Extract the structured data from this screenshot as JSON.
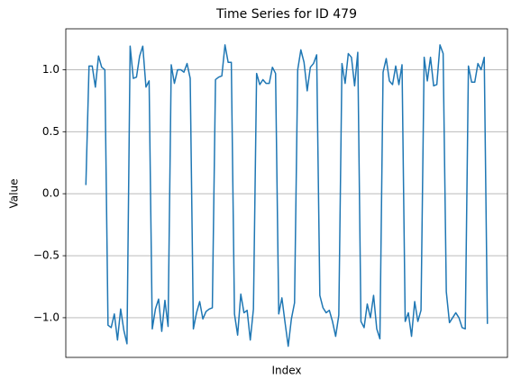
{
  "chart_data": {
    "type": "line",
    "title": "Time Series for ID 479",
    "xlabel": "Index",
    "ylabel": "Value",
    "color": "#1f77b4",
    "grid": true,
    "xlim": [
      -6.35,
      133.35
    ],
    "ylim": [
      -1.32,
      1.33
    ],
    "yticks": [
      {
        "value": -1.0,
        "label": "−1.0"
      },
      {
        "value": -0.5,
        "label": "−0.5"
      },
      {
        "value": 0.0,
        "label": "0.0"
      },
      {
        "value": 0.5,
        "label": "0.5"
      },
      {
        "value": 1.0,
        "label": "1.0"
      }
    ],
    "values": [
      0.07,
      1.03,
      1.03,
      0.86,
      1.11,
      1.02,
      1.0,
      -1.06,
      -1.08,
      -0.97,
      -1.18,
      -0.93,
      -1.1,
      -1.21,
      1.19,
      0.93,
      0.94,
      1.11,
      1.19,
      0.86,
      0.91,
      -1.09,
      -0.93,
      -0.85,
      -1.11,
      -0.86,
      -1.07,
      1.04,
      0.89,
      1.0,
      1.0,
      0.98,
      1.05,
      0.93,
      -1.09,
      -0.96,
      -0.87,
      -1.01,
      -0.95,
      -0.93,
      -0.92,
      0.92,
      0.94,
      0.95,
      1.2,
      1.06,
      1.06,
      -0.97,
      -1.14,
      -0.81,
      -0.96,
      -0.94,
      -1.18,
      -0.93,
      0.97,
      0.88,
      0.92,
      0.89,
      0.89,
      1.02,
      0.97,
      -0.97,
      -0.84,
      -1.04,
      -1.23,
      -1.01,
      -0.88,
      1.0,
      1.16,
      1.06,
      0.83,
      1.02,
      1.05,
      1.12,
      -0.82,
      -0.92,
      -0.96,
      -0.94,
      -1.03,
      -1.15,
      -0.98,
      1.05,
      0.89,
      1.13,
      1.1,
      0.87,
      1.14,
      -1.03,
      -1.08,
      -0.89,
      -1.0,
      -0.82,
      -1.09,
      -1.17,
      0.98,
      1.09,
      0.91,
      0.88,
      1.03,
      0.88,
      1.04,
      -1.03,
      -0.96,
      -1.15,
      -0.87,
      -1.03,
      -0.94,
      1.1,
      0.91,
      1.1,
      0.87,
      0.88,
      1.2,
      1.13,
      -0.79,
      -1.04,
      -1.0,
      -0.96,
      -1.0,
      -1.08,
      -1.09,
      1.03,
      0.9,
      0.9,
      1.05,
      1.0,
      1.1,
      -1.05
    ]
  }
}
